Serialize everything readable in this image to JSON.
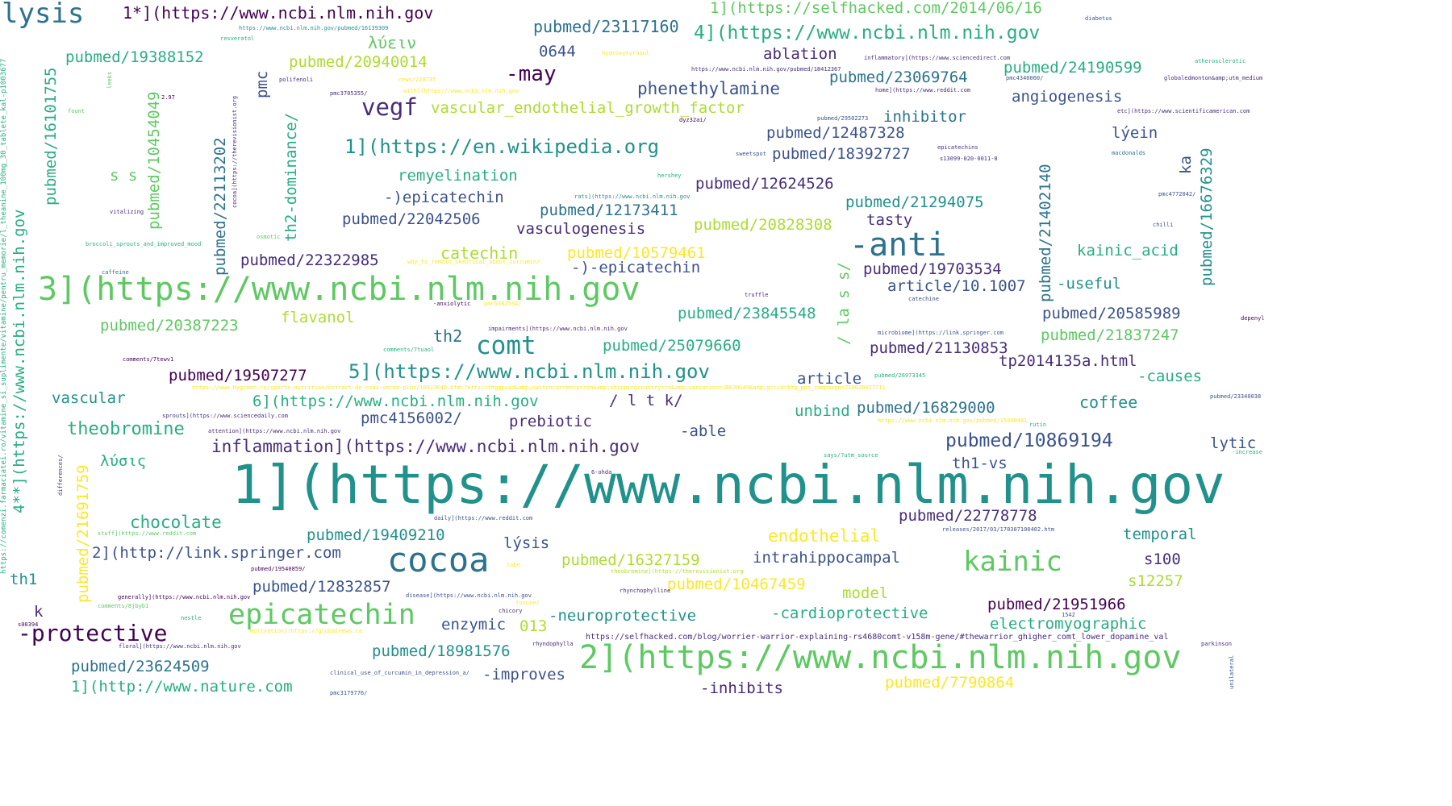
{
  "palette": {
    "darkpurple": "#440154",
    "indigo": "#472d7b",
    "blue": "#3b528b",
    "steel": "#2c728e",
    "teal": "#21918c",
    "green": "#28ae80",
    "lime": "#5ec962",
    "yellowgreen": "#addc30",
    "yellow": "#fde725"
  },
  "words": [
    {
      "text": "1](https://www.ncbi.nlm.nih.gov",
      "color": "teal"
    },
    {
      "text": "3](https://www.ncbi.nlm.nih.gov",
      "color": "lime"
    },
    {
      "text": "2](https://www.ncbi.nlm.nih.gov",
      "color": "lime"
    },
    {
      "text": "cocoa",
      "color": "steel"
    },
    {
      "text": "-anti",
      "color": "steel"
    },
    {
      "text": "kainic",
      "color": "lime"
    },
    {
      "text": "epicatechin",
      "color": "lime"
    },
    {
      "text": "lysis",
      "color": "steel"
    },
    {
      "text": "vegf",
      "color": "indigo"
    },
    {
      "text": "comt",
      "color": "teal"
    },
    {
      "text": "-protective",
      "color": "darkpurple"
    },
    {
      "text": "-may",
      "color": "darkpurple"
    },
    {
      "text": "1*](https://www.ncbi.nlm.nih.gov",
      "color": "darkpurple"
    },
    {
      "text": "1](https://selfhacked.com/2014/06/16",
      "color": "lime"
    },
    {
      "text": "4](https://www.ncbi.nlm.nih.gov",
      "color": "green"
    },
    {
      "text": "pubmed/23117160",
      "color": "steel"
    },
    {
      "text": "0644",
      "color": "blue"
    },
    {
      "text": "λύειν",
      "color": "lime"
    },
    {
      "text": "ablation",
      "color": "indigo"
    },
    {
      "text": "pubmed/19388152",
      "color": "green"
    },
    {
      "text": "pubmed/20940014",
      "color": "yellowgreen"
    },
    {
      "text": "pubmed/23069764",
      "color": "steel"
    },
    {
      "text": "pubmed/24190599",
      "color": "green"
    },
    {
      "text": "phenethylamine",
      "color": "blue"
    },
    {
      "text": "angiogenesis",
      "color": "blue"
    },
    {
      "text": "vascular_endothelial_growth_factor",
      "color": "yellowgreen"
    },
    {
      "text": "inhibitor",
      "color": "steel"
    },
    {
      "text": "pubmed/12487328",
      "color": "blue"
    },
    {
      "text": "lýein",
      "color": "blue"
    },
    {
      "text": "1](https://en.wikipedia.org",
      "color": "teal"
    },
    {
      "text": "pubmed/18392727",
      "color": "blue"
    },
    {
      "text": "remyelination",
      "color": "green"
    },
    {
      "text": "s s",
      "color": "lime"
    },
    {
      "text": "pubmed/12624526",
      "color": "indigo"
    },
    {
      "text": "-)epicatechin",
      "color": "blue"
    },
    {
      "text": "pubmed/21294075",
      "color": "teal"
    },
    {
      "text": "pubmed/22042506",
      "color": "blue"
    },
    {
      "text": "pubmed/12173411",
      "color": "steel"
    },
    {
      "text": "tasty",
      "color": "indigo"
    },
    {
      "text": "vasculogenesis",
      "color": "indigo"
    },
    {
      "text": "pubmed/20828308",
      "color": "yellowgreen"
    },
    {
      "text": "catechin",
      "color": "yellowgreen"
    },
    {
      "text": "pubmed/10579461",
      "color": "yellow"
    },
    {
      "text": "kainic_acid",
      "color": "green"
    },
    {
      "text": "pubmed/22322985",
      "color": "indigo"
    },
    {
      "text": "-)-epicatechin",
      "color": "blue"
    },
    {
      "text": "pubmed/19703534",
      "color": "indigo"
    },
    {
      "text": "-useful",
      "color": "teal"
    },
    {
      "text": "article/10.1007",
      "color": "blue"
    },
    {
      "text": "flavanol",
      "color": "yellowgreen"
    },
    {
      "text": "pubmed/23845548",
      "color": "green"
    },
    {
      "text": "pubmed/20585989",
      "color": "blue"
    },
    {
      "text": "pubmed/20387223",
      "color": "lime"
    },
    {
      "text": "th2",
      "color": "steel"
    },
    {
      "text": "pubmed/21837247",
      "color": "lime"
    },
    {
      "text": "pubmed/25079660",
      "color": "green"
    },
    {
      "text": "pubmed/21130853",
      "color": "indigo"
    },
    {
      "text": "tp2014135a.html",
      "color": "indigo"
    },
    {
      "text": "pubmed/19507277",
      "color": "darkpurple"
    },
    {
      "text": "5](https://www.ncbi.nlm.nih.gov",
      "color": "teal"
    },
    {
      "text": "article",
      "color": "blue"
    },
    {
      "text": "-causes",
      "color": "green"
    },
    {
      "text": "vascular",
      "color": "teal"
    },
    {
      "text": "6](https://www.ncbi.nlm.nih.gov",
      "color": "green"
    },
    {
      "text": "/ l t k/",
      "color": "indigo"
    },
    {
      "text": "coffee",
      "color": "teal"
    },
    {
      "text": "unbind",
      "color": "green"
    },
    {
      "text": "pubmed/16829000",
      "color": "steel"
    },
    {
      "text": "theobromine",
      "color": "green"
    },
    {
      "text": "pmc4156002/",
      "color": "blue"
    },
    {
      "text": "prebiotic",
      "color": "indigo"
    },
    {
      "text": "-able",
      "color": "blue"
    },
    {
      "text": "inflammation](https://www.ncbi.nlm.nih.gov",
      "color": "indigo"
    },
    {
      "text": "pubmed/10869194",
      "color": "blue"
    },
    {
      "text": "λύσις",
      "color": "green"
    },
    {
      "text": "lytic",
      "color": "blue"
    },
    {
      "text": "th1-vs",
      "color": "blue"
    },
    {
      "text": "chocolate",
      "color": "green"
    },
    {
      "text": "pubmed/22778778",
      "color": "indigo"
    },
    {
      "text": "endothelial",
      "color": "yellow"
    },
    {
      "text": "temporal",
      "color": "teal"
    },
    {
      "text": "pubmed/19409210",
      "color": "teal"
    },
    {
      "text": "2](http://link.springer.com",
      "color": "blue"
    },
    {
      "text": "lýsis",
      "color": "blue"
    },
    {
      "text": "pubmed/16327159",
      "color": "yellowgreen"
    },
    {
      "text": "intrahippocampal",
      "color": "blue"
    },
    {
      "text": "s100",
      "color": "indigo"
    },
    {
      "text": "th1",
      "color": "teal"
    },
    {
      "text": "pubmed/12832857",
      "color": "blue"
    },
    {
      "text": "pubmed/10467459",
      "color": "yellow"
    },
    {
      "text": "s12257",
      "color": "yellowgreen"
    },
    {
      "text": "model",
      "color": "yellowgreen"
    },
    {
      "text": "pubmed/21951966",
      "color": "darkpurple"
    },
    {
      "text": "k",
      "color": "indigo"
    },
    {
      "text": "013",
      "color": "yellowgreen"
    },
    {
      "text": "enzymic",
      "color": "blue"
    },
    {
      "text": "-neuroprotective",
      "color": "teal"
    },
    {
      "text": "-cardioprotective",
      "color": "green"
    },
    {
      "text": "electromyographic",
      "color": "green"
    },
    {
      "text": "https://selfhacked.com/blog/worrier-warrior-explaining-rs4680comt-v158m-gene/#thewarrior_ghigher_comt_lower_dopamine_val",
      "color": "indigo"
    },
    {
      "text": "pubmed/18981576",
      "color": "teal"
    },
    {
      "text": "pubmed/23624509",
      "color": "steel"
    },
    {
      "text": "-improves",
      "color": "blue"
    },
    {
      "text": "1](http://www.nature.com",
      "color": "green"
    },
    {
      "text": "-inhibits",
      "color": "indigo"
    },
    {
      "text": "pubmed/7790864",
      "color": "yellow"
    },
    {
      "text": "pubmed/16101755",
      "color": "green"
    },
    {
      "text": "pubmed/10454049",
      "color": "lime"
    },
    {
      "text": "pmc",
      "color": "blue"
    },
    {
      "text": "th2-dominance/",
      "color": "green"
    },
    {
      "text": "pubmed/22113202",
      "color": "steel"
    },
    {
      "text": "4**](https://www.ncbi.nlm.nih.gov",
      "color": "green"
    },
    {
      "text": "pubmed/21691759",
      "color": "yellow"
    },
    {
      "text": "pubmed/21402140",
      "color": "steel"
    },
    {
      "text": "pubmed/16676329",
      "color": "teal"
    },
    {
      "text": "ka",
      "color": "blue"
    },
    {
      "text": "/ la s s/",
      "color": "lime"
    },
    {
      "text": "https://comenzi.farmaciatei.ro/vitamine_si_suplimente/vitamine/pentru_memorie/l_theanine_100mg_30_tablete_kal-p1003677",
      "color": "green"
    },
    {
      "text": "https://www.ncbi.nlm.nih.gov/pubmed/16139309",
      "color": "teal"
    },
    {
      "text": "resveratol",
      "color": "green"
    },
    {
      "text": "polifenoli",
      "color": "indigo"
    },
    {
      "text": "hydroxytyrosol",
      "color": "yellow"
    },
    {
      "text": "news/228735",
      "color": "yellow"
    },
    {
      "text": "pmc3705355/",
      "color": "indigo"
    },
    {
      "text": "2.97",
      "color": "darkpurple"
    },
    {
      "text": "fount",
      "color": "lime"
    },
    {
      "text": "leeks",
      "color": "lime"
    },
    {
      "text": "https://www.ncbi.nlm.nih.gov/pubmed/18412367",
      "color": "indigo"
    },
    {
      "text": "inflammatory](https://www.sciencedirect.com",
      "color": "indigo"
    },
    {
      "text": "atherosclerotic",
      "color": "green"
    },
    {
      "text": "globaledmonton&amp;utm_medium",
      "color": "indigo"
    },
    {
      "text": "pmc4340060/",
      "color": "blue"
    },
    {
      "text": "home](https://www.reddit.com",
      "color": "indigo"
    },
    {
      "text": "etc](https://www.scientificamerican.com",
      "color": "indigo"
    },
    {
      "text": "pubmed/29502273",
      "color": "blue"
    },
    {
      "text": "dyz32ai/",
      "color": "darkpurple"
    },
    {
      "text": "diabetus",
      "color": "blue"
    },
    {
      "text": "epicatechins",
      "color": "indigo"
    },
    {
      "text": "sweetspot",
      "color": "blue"
    },
    {
      "text": "macdonalds",
      "color": "steel"
    },
    {
      "text": "hershey",
      "color": "green"
    },
    {
      "text": "rats](https://www.ncbi.nlm.nih.gov",
      "color": "teal"
    },
    {
      "text": "vitalizing",
      "color": "indigo"
    },
    {
      "text": "broccoli_sprouts_and_improved_mood",
      "color": "green"
    },
    {
      "text": "caffeine",
      "color": "steel"
    },
    {
      "text": "osmotic",
      "color": "lime"
    },
    {
      "text": "why_to_remain_skeptical_about_curcumin/",
      "color": "yellow"
    },
    {
      "text": "pmc4772042/",
      "color": "blue"
    },
    {
      "text": "chilli",
      "color": "blue"
    },
    {
      "text": "truffle",
      "color": "indigo"
    },
    {
      "text": "catechine",
      "color": "blue"
    },
    {
      "text": "-anxiolytic",
      "color": "darkpurple"
    },
    {
      "text": "pmc5382554/",
      "color": "yellow"
    },
    {
      "text": "impairments](https://www.ncbi.nlm.nih.gov",
      "color": "indigo"
    },
    {
      "text": "microbiome](https://link.springer.com",
      "color": "blue"
    },
    {
      "text": "depenyl",
      "color": "darkpurple"
    },
    {
      "text": "comments/7tewv1",
      "color": "darkpurple"
    },
    {
      "text": "comments/7tuaol",
      "color": "green"
    },
    {
      "text": "pubmed/26973345",
      "color": "green"
    },
    {
      "text": "pubmed/23340038",
      "color": "blue"
    },
    {
      "text": "sprouts](https://www.sciencedaily.com",
      "color": "indigo"
    },
    {
      "text": "attention](https://www.ncbi.nlm.nih.gov",
      "color": "indigo"
    },
    {
      "text": "https://www.ncbi.nlm.nih.gov/pubmed/15890481",
      "color": "yellow"
    },
    {
      "text": "rutin",
      "color": "green"
    },
    {
      "text": "says/?utm_source",
      "color": "green"
    },
    {
      "text": "-increase",
      "color": "green"
    },
    {
      "text": "6-ohda",
      "color": "indigo"
    },
    {
      "text": "differences/",
      "color": "indigo"
    },
    {
      "text": "daily](https://www.reddit.com",
      "color": "blue"
    },
    {
      "text": "stuff](https://www.reddit.com",
      "color": "lime"
    },
    {
      "text": "releases/2017/03/170307100402.htm",
      "color": "blue"
    },
    {
      "text": "pubmed/19540859/",
      "color": "darkpurple"
    },
    {
      "text": "lobe",
      "color": "yellow"
    },
    {
      "text": "theobromine](https://therevisionist.org",
      "color": "yellowgreen"
    },
    {
      "text": "rhynchophylline",
      "color": "indigo"
    },
    {
      "text": "generally](https://www.ncbi.nlm.nih.gov",
      "color": "darkpurple"
    },
    {
      "text": "disease](https://www.ncbi.nlm.nih.gov",
      "color": "blue"
    },
    {
      "text": "comments/8jbyb1",
      "color": "lime"
    },
    {
      "text": "future/",
      "color": "yellow"
    },
    {
      "text": "chicory",
      "color": "indigo"
    },
    {
      "text": "nestle",
      "color": "green"
    },
    {
      "text": "motivation](https://globalnews.ca",
      "color": "yellow"
    },
    {
      "text": "s00394",
      "color": "darkpurple"
    },
    {
      "text": "floral](https://www.ncbi.nlm.nih.gov",
      "color": "indigo"
    },
    {
      "text": "rhyndophylla",
      "color": "indigo"
    },
    {
      "text": "parkinson",
      "color": "indigo"
    },
    {
      "text": "clinical_use_of_curcumin_in_depression_a/",
      "color": "blue"
    },
    {
      "text": "pmc3179776/",
      "color": "blue"
    },
    {
      "text": "unilateral",
      "color": "blue"
    },
    {
      "text": "cocoa](https://therevisionist.org",
      "color": "indigo"
    },
    {
      "text": "https://www.hygreen.ro/sports-nutrition/extract-de-ceai-verde-plus/10913640.html?affil=thggpsad&amp;switchcurrency=ron&amp;shippingcountry=ro&amp;variation=10830149&amp;gclid=thg_pps_campaign=71002002771178&amp;product_id=10530149&amp;gclid",
      "color": "yellow"
    },
    {
      "text": "1542",
      "color": "blue"
    },
    {
      "text": "with](https://www.ncbi.nlm.nih.gov",
      "color": "yellow"
    },
    {
      "text": "s13099-020-0011-8",
      "color": "indigo"
    }
  ]
}
